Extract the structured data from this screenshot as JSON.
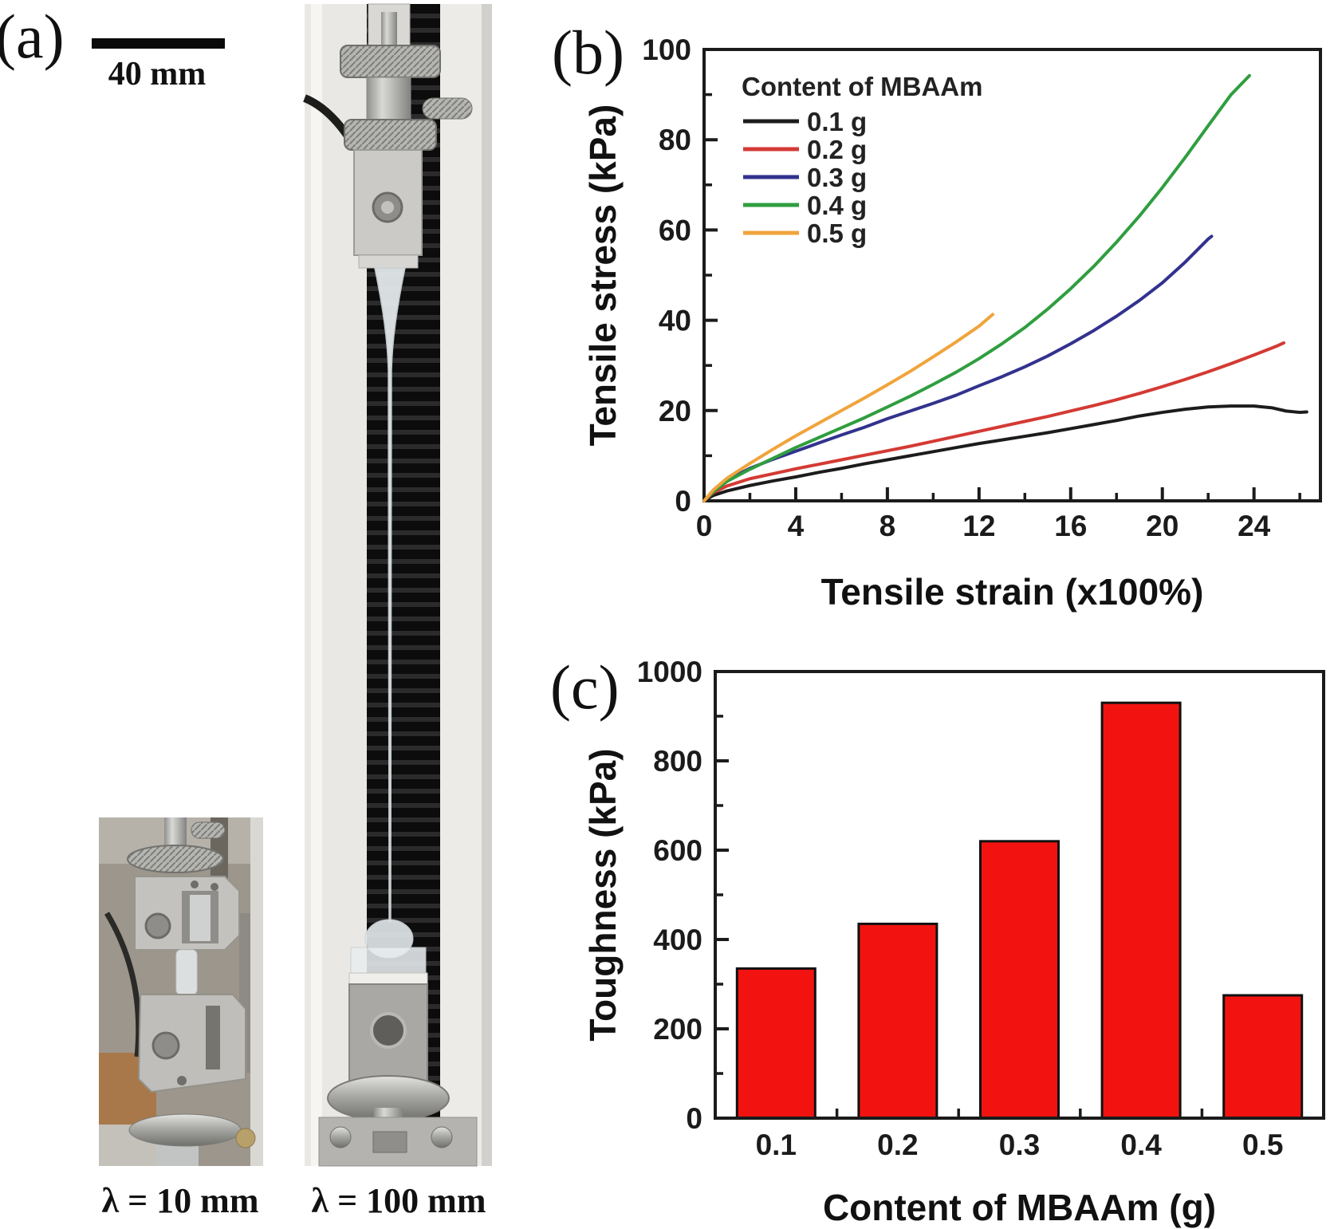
{
  "figure": {
    "panel_a": {
      "label": "(a)",
      "scale_bar": {
        "label": "40 mm"
      },
      "caption_left": "λ = 10 mm",
      "caption_right": "λ = 100 mm"
    },
    "panel_b": {
      "label": "(b)"
    },
    "panel_c": {
      "label": "(c)"
    }
  },
  "colors": {
    "axis": "#1b1b1b",
    "bar_fill": "#f21310",
    "bar_stroke": "#111111",
    "series_black": "#1c1c1c",
    "series_red": "#d43a34",
    "series_blue": "#32328e",
    "series_green": "#2f9e3f",
    "series_orange": "#f0a43c"
  },
  "chart_data": [
    {
      "id": "b",
      "type": "line",
      "title": "",
      "xlabel": "Tensile strain (x100%)",
      "ylabel": "Tensile stress (kPa)",
      "xlim": [
        0,
        26.9
      ],
      "ylim": [
        0,
        100
      ],
      "x_major_ticks": [
        0,
        4,
        8,
        12,
        16,
        20,
        24
      ],
      "x_minor_ticks": [
        2,
        6,
        10,
        14,
        18,
        22,
        26
      ],
      "y_major_ticks": [
        0,
        20,
        40,
        60,
        80,
        100
      ],
      "y_minor_ticks": [
        10,
        30,
        50,
        70,
        90
      ],
      "grid": false,
      "legend": {
        "title": "Content of MBAAm",
        "position": "top-left"
      },
      "series": [
        {
          "name": "0.1 g",
          "color": "#1c1c1c",
          "points": [
            [
              0,
              0
            ],
            [
              0.4,
              1.2
            ],
            [
              1,
              2.2
            ],
            [
              2,
              3.4
            ],
            [
              3,
              4.4
            ],
            [
              4,
              5.3
            ],
            [
              5,
              6.3
            ],
            [
              6,
              7.2
            ],
            [
              7,
              8.2
            ],
            [
              8,
              9.1
            ],
            [
              9,
              10
            ],
            [
              10,
              10.9
            ],
            [
              11,
              11.8
            ],
            [
              12,
              12.7
            ],
            [
              13,
              13.5
            ],
            [
              14,
              14.3
            ],
            [
              15,
              15.1
            ],
            [
              16,
              16
            ],
            [
              17,
              16.9
            ],
            [
              18,
              17.8
            ],
            [
              19,
              18.8
            ],
            [
              20,
              19.6
            ],
            [
              21,
              20.3
            ],
            [
              22,
              20.8
            ],
            [
              23,
              21
            ],
            [
              24,
              21
            ],
            [
              24.8,
              20.6
            ],
            [
              25.4,
              19.9
            ],
            [
              26,
              19.6
            ],
            [
              26.3,
              19.7
            ]
          ]
        },
        {
          "name": "0.2 g",
          "color": "#d43a34",
          "points": [
            [
              0,
              0
            ],
            [
              0.4,
              1.8
            ],
            [
              1,
              3.3
            ],
            [
              2,
              4.9
            ],
            [
              3,
              6
            ],
            [
              4,
              7.1
            ],
            [
              5,
              8.1
            ],
            [
              6,
              9.1
            ],
            [
              7,
              10.1
            ],
            [
              8,
              11.1
            ],
            [
              9,
              12.1
            ],
            [
              10,
              13.2
            ],
            [
              11,
              14.3
            ],
            [
              12,
              15.4
            ],
            [
              13,
              16.5
            ],
            [
              14,
              17.6
            ],
            [
              15,
              18.7
            ],
            [
              16,
              19.9
            ],
            [
              17,
              21.1
            ],
            [
              18,
              22.4
            ],
            [
              19,
              23.8
            ],
            [
              20,
              25.3
            ],
            [
              21,
              26.9
            ],
            [
              22,
              28.6
            ],
            [
              23,
              30.4
            ],
            [
              24,
              32.3
            ],
            [
              25,
              34.3
            ],
            [
              25.3,
              35
            ]
          ]
        },
        {
          "name": "0.3 g",
          "color": "#32328e",
          "points": [
            [
              0,
              0
            ],
            [
              0.4,
              2.2
            ],
            [
              1,
              4.6
            ],
            [
              2,
              7.2
            ],
            [
              3,
              9.2
            ],
            [
              4,
              11
            ],
            [
              5,
              12.8
            ],
            [
              6,
              14.6
            ],
            [
              7,
              16.3
            ],
            [
              8,
              18.2
            ],
            [
              9,
              19.9
            ],
            [
              10,
              21.6
            ],
            [
              11,
              23.4
            ],
            [
              12,
              25.5
            ],
            [
              13,
              27.5
            ],
            [
              14,
              29.7
            ],
            [
              15,
              32.1
            ],
            [
              16,
              34.8
            ],
            [
              17,
              37.7
            ],
            [
              18,
              40.9
            ],
            [
              19,
              44.4
            ],
            [
              20,
              48.3
            ],
            [
              21,
              52.9
            ],
            [
              22,
              58
            ],
            [
              22.15,
              58.6
            ]
          ]
        },
        {
          "name": "0.4 g",
          "color": "#2f9e3f",
          "points": [
            [
              0,
              0
            ],
            [
              0.4,
              2
            ],
            [
              1,
              4.3
            ],
            [
              2,
              7
            ],
            [
              3,
              9.4
            ],
            [
              4,
              11.8
            ],
            [
              5,
              14
            ],
            [
              6,
              16.2
            ],
            [
              7,
              18.4
            ],
            [
              8,
              20.8
            ],
            [
              9,
              23.2
            ],
            [
              10,
              25.8
            ],
            [
              11,
              28.5
            ],
            [
              12,
              31.5
            ],
            [
              13,
              34.8
            ],
            [
              14,
              38.4
            ],
            [
              15,
              42.5
            ],
            [
              16,
              47
            ],
            [
              17,
              51.9
            ],
            [
              18,
              57.3
            ],
            [
              19,
              63.1
            ],
            [
              20,
              69.4
            ],
            [
              21,
              76.1
            ],
            [
              22,
              83.1
            ],
            [
              23,
              90
            ],
            [
              23.8,
              94.2
            ]
          ]
        },
        {
          "name": "0.5 g",
          "color": "#f0a43c",
          "points": [
            [
              0,
              0
            ],
            [
              0.4,
              2.4
            ],
            [
              1,
              5
            ],
            [
              2,
              8.3
            ],
            [
              3,
              11.4
            ],
            [
              4,
              14.4
            ],
            [
              5,
              17.2
            ],
            [
              6,
              20
            ],
            [
              7,
              22.8
            ],
            [
              8,
              25.7
            ],
            [
              9,
              28.7
            ],
            [
              10,
              31.9
            ],
            [
              11,
              35.2
            ],
            [
              12,
              38.7
            ],
            [
              12.6,
              41.3
            ]
          ]
        }
      ]
    },
    {
      "id": "c",
      "type": "bar",
      "title": "",
      "xlabel": "Content of MBAAm (g)",
      "ylabel": "Toughness (kPa)",
      "categories": [
        "0.1",
        "0.2",
        "0.3",
        "0.4",
        "0.5"
      ],
      "values": [
        335,
        435,
        620,
        930,
        275
      ],
      "ylim": [
        0,
        1000
      ],
      "y_major_ticks": [
        0,
        200,
        400,
        600,
        800,
        1000
      ],
      "y_minor_ticks": [
        100,
        300,
        500,
        700,
        900
      ],
      "grid": false,
      "bar_color": "#f21310"
    }
  ]
}
